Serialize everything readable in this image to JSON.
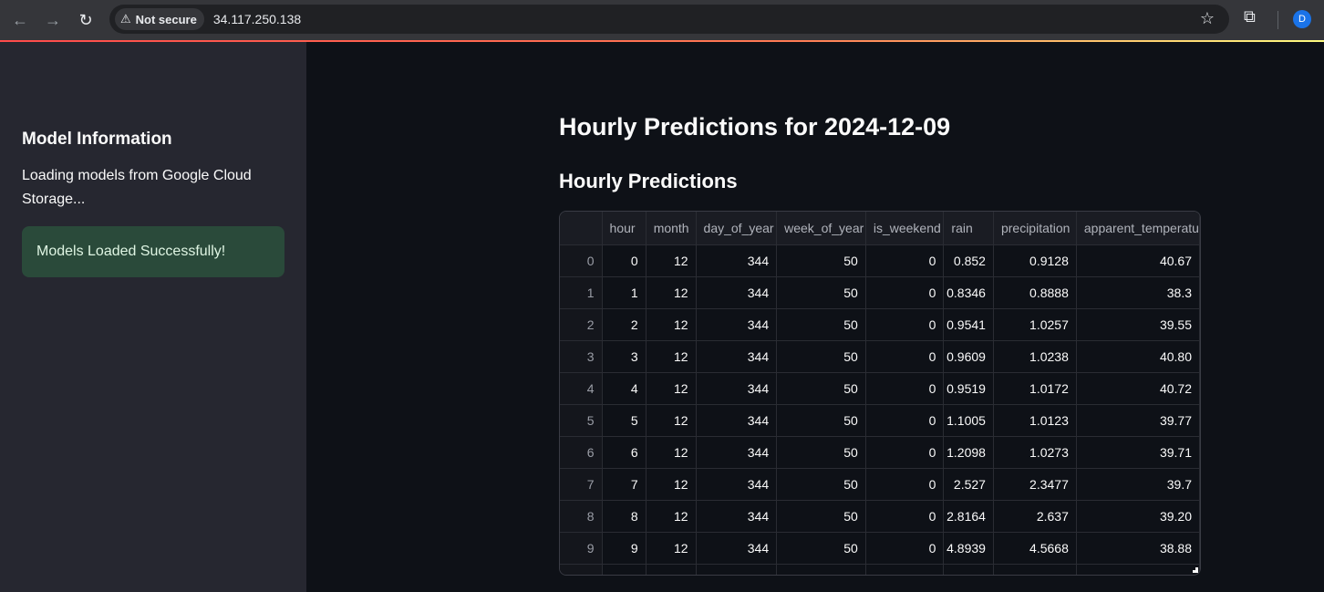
{
  "browser": {
    "security_label": "Not secure",
    "url": "34.117.250.138",
    "profile_initial": "D",
    "icons": {
      "back": "arrow-left-icon",
      "forward": "arrow-right-icon",
      "reload": "reload-icon",
      "warning": "warning-triangle-icon",
      "bookmark": "star-icon",
      "extensions": "puzzle-icon"
    }
  },
  "sidebar": {
    "heading": "Model Information",
    "loading_text": "Loading models from Google Cloud Storage...",
    "success_message": "Models Loaded Successfully!"
  },
  "main": {
    "title": "Hourly Predictions for 2024-12-09",
    "subtitle": "Hourly Predictions"
  },
  "table": {
    "columns": [
      "",
      "hour",
      "month",
      "day_of_year",
      "week_of_year",
      "is_weekend",
      "rain",
      "precipitation",
      "apparent_temperatu"
    ],
    "rows": [
      [
        "0",
        "0",
        "12",
        "344",
        "50",
        "0",
        "0.852",
        "0.9128",
        "40.67"
      ],
      [
        "1",
        "1",
        "12",
        "344",
        "50",
        "0",
        "0.8346",
        "0.8888",
        "38.3"
      ],
      [
        "2",
        "2",
        "12",
        "344",
        "50",
        "0",
        "0.9541",
        "1.0257",
        "39.55"
      ],
      [
        "3",
        "3",
        "12",
        "344",
        "50",
        "0",
        "0.9609",
        "1.0238",
        "40.80"
      ],
      [
        "4",
        "4",
        "12",
        "344",
        "50",
        "0",
        "0.9519",
        "1.0172",
        "40.72"
      ],
      [
        "5",
        "5",
        "12",
        "344",
        "50",
        "0",
        "1.1005",
        "1.0123",
        "39.77"
      ],
      [
        "6",
        "6",
        "12",
        "344",
        "50",
        "0",
        "1.2098",
        "1.0273",
        "39.71"
      ],
      [
        "7",
        "7",
        "12",
        "344",
        "50",
        "0",
        "2.527",
        "2.3477",
        "39.7"
      ],
      [
        "8",
        "8",
        "12",
        "344",
        "50",
        "0",
        "2.8164",
        "2.637",
        "39.20"
      ],
      [
        "9",
        "9",
        "12",
        "344",
        "50",
        "0",
        "4.8939",
        "4.5668",
        "38.88"
      ],
      [
        "",
        "",
        "",
        "",
        "",
        "",
        "",
        "",
        ""
      ]
    ]
  },
  "colors": {
    "background": "#0e1117",
    "sidebar": "#262730",
    "success_bg": "#2a4a3a",
    "accent": "#ff4b4b"
  }
}
